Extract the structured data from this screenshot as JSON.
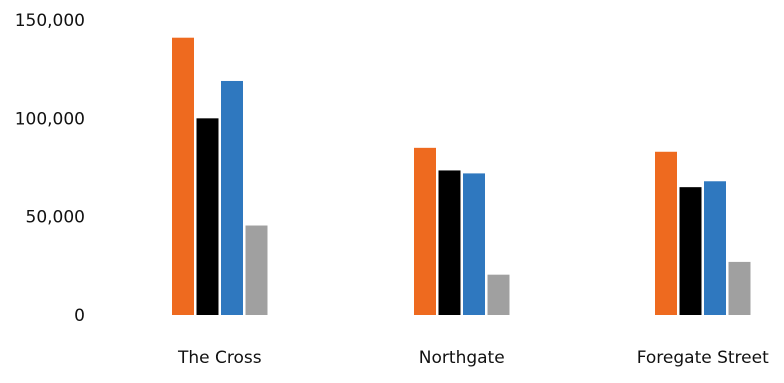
{
  "chart_data": {
    "type": "bar",
    "title": "",
    "xlabel": "",
    "ylabel": "",
    "categories": [
      "The Cross",
      "Northgate",
      "Foregate Street"
    ],
    "series": [
      {
        "color": "#EE6A1F",
        "values": [
          141000,
          85000,
          83000
        ]
      },
      {
        "color": "#000000",
        "values": [
          100000,
          73500,
          65000
        ]
      },
      {
        "color": "#2F78BF",
        "values": [
          119000,
          72000,
          68000
        ]
      },
      {
        "color": "#A0A0A0",
        "values": [
          45500,
          20500,
          27000
        ]
      }
    ],
    "ylim": [
      0,
      150000
    ],
    "y_ticks": [
      {
        "value": 0,
        "label": "0"
      },
      {
        "value": 50000,
        "label": "50,000"
      },
      {
        "value": 100000,
        "label": "100,000"
      },
      {
        "value": 150000,
        "label": "150,000"
      }
    ],
    "grid": false,
    "legend": "none"
  }
}
